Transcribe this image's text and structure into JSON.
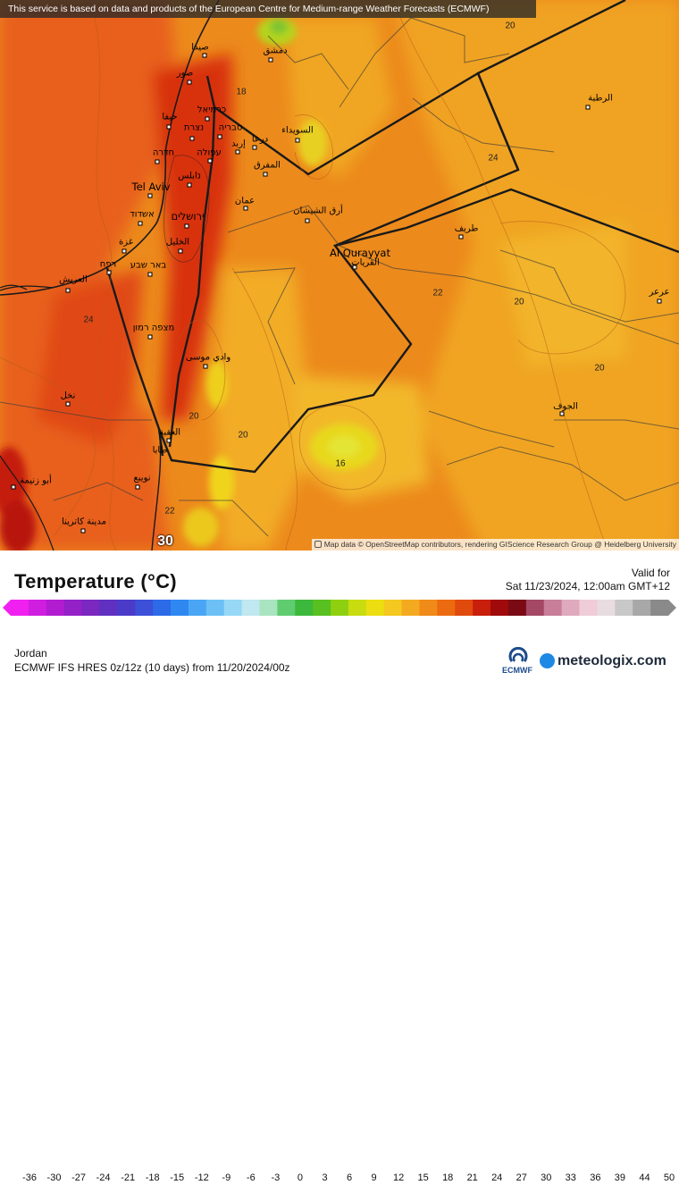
{
  "attribution_top": "This service is based on data and products of the European Centre for Medium-range Weather Forecasts (ECMWF)",
  "attribution_bottom": "Map data © OpenStreetMap contributors, rendering GIScience Research Group @ Heidelberg University",
  "legend": {
    "title": "Temperature (°C)",
    "valid_label": "Valid for",
    "valid_time": "Sat 11/23/2024, 12:00am GMT+12",
    "region": "Jordan",
    "model": "ECMWF IFS HRES 0z/12z (10 days) from  11/20/2024/00z",
    "ticks": [
      "-36",
      "-30",
      "-27",
      "-24",
      "-21",
      "-18",
      "-15",
      "-12",
      "-9",
      "-6",
      "-3",
      "0",
      "3",
      "6",
      "9",
      "12",
      "15",
      "18",
      "21",
      "24",
      "27",
      "30",
      "33",
      "36",
      "39",
      "44",
      "50"
    ],
    "colors": [
      "#f020f0",
      "#d01ee0",
      "#b21cd0",
      "#9420c8",
      "#7a28c0",
      "#6030c0",
      "#4a3cc8",
      "#3c50d8",
      "#2c6ae8",
      "#2e88f0",
      "#4aa6f4",
      "#6cc0f6",
      "#96d8f6",
      "#bfe8f0",
      "#a8e4c0",
      "#60cc70",
      "#3cb83c",
      "#58c020",
      "#8ed010",
      "#c8dc10",
      "#ecde10",
      "#f4c820",
      "#f4aa20",
      "#f08a18",
      "#ec6a10",
      "#e04a0c",
      "#c81e0c",
      "#a00a0a",
      "#7a0a14",
      "#a44866",
      "#c87e98",
      "#e0aabe",
      "#f0ccd8",
      "#e8dce0",
      "#c8c8c8",
      "#a8a8a8",
      "#8a8a8a"
    ],
    "ecmwf_text": "ECMWF",
    "brand": "meteologix.com"
  },
  "map": {
    "places": [
      {
        "name": "دمشق"
      },
      {
        "name": "صيدا"
      },
      {
        "name": "صور"
      },
      {
        "name": "حيفا"
      },
      {
        "name": "כרמיאל"
      },
      {
        "name": "נצרת"
      },
      {
        "name": "טבריה"
      },
      {
        "name": "חדרה"
      },
      {
        "name": "עפולה"
      },
      {
        "name": "Tel Aviv"
      },
      {
        "name": "נابلس"
      },
      {
        "name": "אשדוד"
      },
      {
        "name": "ירושלים"
      },
      {
        "name": "غزة"
      },
      {
        "name": "الخليل"
      },
      {
        "name": "רפח"
      },
      {
        "name": "באר שבע"
      },
      {
        "name": "العريش"
      },
      {
        "name": "מצפה רמון"
      },
      {
        "name": "وادي موسى"
      },
      {
        "name": "العقبة"
      },
      {
        "name": "طابا"
      },
      {
        "name": "نويبع"
      },
      {
        "name": "أبو زنيمة"
      },
      {
        "name": "مدينة كاترينا"
      },
      {
        "name": "إربد"
      },
      {
        "name": "درعا"
      },
      {
        "name": "السويداء"
      },
      {
        "name": "المفرق"
      },
      {
        "name": "عمان"
      },
      {
        "name": "أرق الشيشان"
      },
      {
        "name": "Al Qurayyat"
      },
      {
        "name": "القريات"
      },
      {
        "name": "طريف"
      },
      {
        "name": "الرطبة"
      },
      {
        "name": "عرعر"
      },
      {
        "name": "الجوف"
      },
      {
        "name": "نخل"
      }
    ],
    "isotherms": [
      "20",
      "18",
      "24",
      "22",
      "20",
      "20",
      "24",
      "20",
      "20",
      "16",
      "22",
      "30"
    ]
  }
}
